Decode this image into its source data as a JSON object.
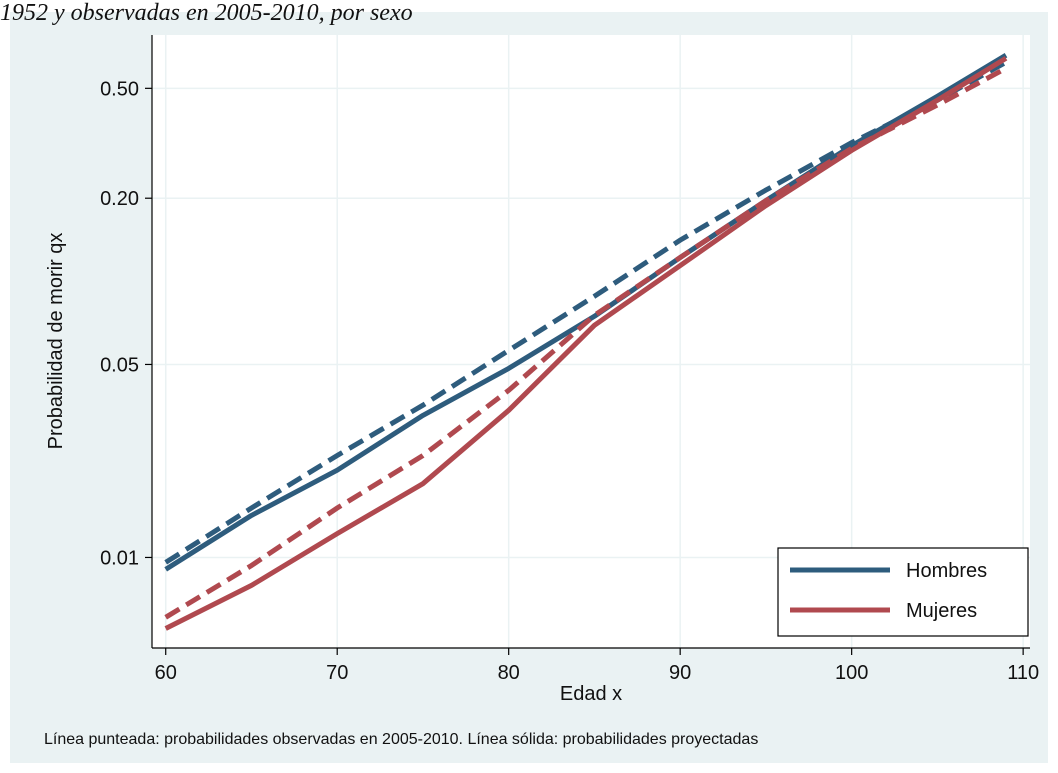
{
  "chart_data": {
    "type": "line",
    "title": "1952 y observadas en 2005-2010, por sexo",
    "x_label": "Edad x",
    "y_label": "Probabilidad de morir  qx",
    "note": "Línea punteada: probabilidades observadas en 2005-2010.  Línea sólida: probabilidades proyectadas",
    "x": [
      60,
      65,
      70,
      75,
      80,
      85,
      90,
      95,
      100,
      105,
      109
    ],
    "series": [
      {
        "name": "Hombres",
        "color": "#2e5c7d",
        "values": [
          0.00905,
          0.0142,
          0.0207,
          0.0327,
          0.0484,
          0.0747,
          0.122,
          0.196,
          0.31,
          0.468,
          0.659
        ],
        "observed": [
          0.0096,
          0.0151,
          0.0234,
          0.0356,
          0.0562,
          0.0883,
          0.141,
          0.214,
          0.318,
          0.453,
          0.621
        ]
      },
      {
        "name": "Mujeres",
        "color": "#b0494f",
        "values": [
          0.00553,
          0.00792,
          0.0122,
          0.0185,
          0.0341,
          0.0693,
          0.114,
          0.188,
          0.298,
          0.453,
          0.643
        ],
        "observed": [
          0.00607,
          0.00935,
          0.0151,
          0.0234,
          0.0403,
          0.0753,
          0.122,
          0.196,
          0.303,
          0.435,
          0.591
        ]
      }
    ],
    "xlim": [
      59.2,
      110.4
    ],
    "xticks": [
      60,
      70,
      80,
      90,
      100,
      110
    ],
    "ylim": [
      0.0047,
      0.78
    ],
    "ylog": true,
    "yticks": [
      {
        "value": 0.5,
        "label": "0.50"
      },
      {
        "value": 0.2,
        "label": "0.20"
      },
      0.05,
      0.01
    ],
    "grid": true,
    "legend": "lower-right"
  }
}
